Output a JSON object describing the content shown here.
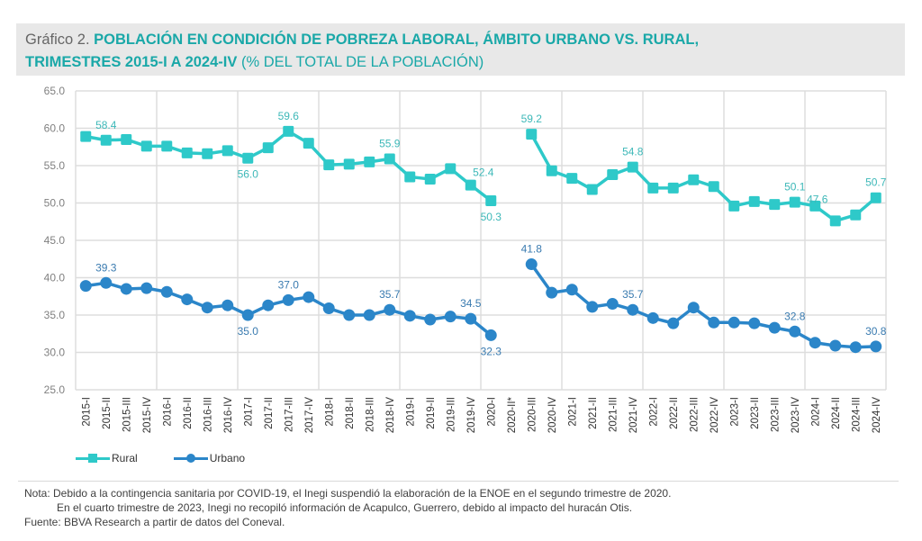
{
  "title": {
    "prefix": "Gráfico 2.",
    "bold_line1": "POBLACIÓN EN CONDICIÓN DE POBREZA LABORAL, ÁMBITO URBANO VS. RURAL,",
    "bold_line2": "TRIMESTRES 2015-I A 2024-IV",
    "normal_line2": "(% DEL TOTAL DE LA POBLACIÓN)"
  },
  "colors": {
    "rural": "#2ec9c9",
    "urbano": "#2b86c9",
    "title_accent": "#1aa8a8",
    "grid": "#dddddd",
    "axis_text": "#808080"
  },
  "chart_data": {
    "type": "line",
    "title": "Población en condición de pobreza laboral, ámbito urbano vs. rural, trimestres 2015-I a 2024-IV (% del total de la población)",
    "xlabel": "",
    "ylabel": "",
    "ylim": [
      25,
      65
    ],
    "yticks": [
      "65.0",
      "60.0",
      "55.0",
      "50.0",
      "45.0",
      "40.0",
      "35.0",
      "30.0",
      "25.0"
    ],
    "ytick_values": [
      65,
      60,
      55,
      50,
      45,
      40,
      35,
      30,
      25
    ],
    "grid": true,
    "legend_position": "bottom-left",
    "categories": [
      "2015-I",
      "2015-II",
      "2015-III",
      "2015-IV",
      "2016-I",
      "2016-II",
      "2016-III",
      "2016-IV",
      "2017-I",
      "2017-II",
      "2017-III",
      "2017-IV",
      "2018-I",
      "2018-II",
      "2018-III",
      "2018-IV",
      "2019-I",
      "2019-II",
      "2019-III",
      "2019-IV",
      "2020-I",
      "2020-II*",
      "2020-III",
      "2020-IV",
      "2021-I",
      "2021-II",
      "2021-III",
      "2021-IV",
      "2022-I",
      "2022-II",
      "2022-III",
      "2022-IV",
      "2023-I",
      "2023-II",
      "2023-III",
      "2023-IV",
      "2024-I",
      "2024-II",
      "2024-III",
      "2024-IV"
    ],
    "series": [
      {
        "name": "Rural",
        "marker": "square",
        "values": [
          58.9,
          58.4,
          58.5,
          57.6,
          57.6,
          56.7,
          56.6,
          57.0,
          56.0,
          57.4,
          59.6,
          58.0,
          55.1,
          55.2,
          55.5,
          55.9,
          53.5,
          53.2,
          54.6,
          52.4,
          50.3,
          null,
          59.2,
          54.3,
          53.3,
          51.8,
          53.8,
          54.8,
          52.0,
          52.0,
          53.1,
          52.2,
          49.6,
          50.2,
          49.8,
          50.1,
          49.6,
          47.6,
          48.4,
          50.7
        ],
        "labels": [
          {
            "index": 1,
            "text": "58.4",
            "pos": "above"
          },
          {
            "index": 8,
            "text": "56.0",
            "pos": "below"
          },
          {
            "index": 10,
            "text": "59.6",
            "pos": "above"
          },
          {
            "index": 15,
            "text": "55.9",
            "pos": "above"
          },
          {
            "index": 19,
            "text": "52.4",
            "pos": "above-right"
          },
          {
            "index": 20,
            "text": "50.3",
            "pos": "below"
          },
          {
            "index": 22,
            "text": "59.2",
            "pos": "above"
          },
          {
            "index": 27,
            "text": "54.8",
            "pos": "above"
          },
          {
            "index": 35,
            "text": "50.1",
            "pos": "above"
          },
          {
            "index": 37,
            "text": "47.6",
            "pos": "above-left"
          },
          {
            "index": 39,
            "text": "50.7",
            "pos": "above"
          }
        ]
      },
      {
        "name": "Urbano",
        "marker": "circle",
        "values": [
          38.9,
          39.3,
          38.5,
          38.6,
          38.1,
          37.1,
          36.0,
          36.3,
          35.0,
          36.3,
          37.0,
          37.4,
          35.9,
          35.0,
          35.0,
          35.7,
          34.9,
          34.4,
          34.8,
          34.5,
          32.3,
          null,
          41.8,
          38.0,
          38.4,
          36.1,
          36.5,
          35.7,
          34.6,
          33.9,
          36.0,
          34.0,
          34.0,
          33.9,
          33.3,
          32.8,
          31.3,
          30.9,
          30.7,
          30.8
        ],
        "labels": [
          {
            "index": 1,
            "text": "39.3",
            "pos": "above"
          },
          {
            "index": 8,
            "text": "35.0",
            "pos": "below"
          },
          {
            "index": 10,
            "text": "37.0",
            "pos": "above"
          },
          {
            "index": 15,
            "text": "35.7",
            "pos": "above"
          },
          {
            "index": 19,
            "text": "34.5",
            "pos": "above"
          },
          {
            "index": 20,
            "text": "32.3",
            "pos": "below"
          },
          {
            "index": 22,
            "text": "41.8",
            "pos": "above"
          },
          {
            "index": 27,
            "text": "35.7",
            "pos": "above"
          },
          {
            "index": 35,
            "text": "32.8",
            "pos": "above"
          },
          {
            "index": 39,
            "text": "30.8",
            "pos": "above"
          }
        ]
      }
    ]
  },
  "legend": {
    "rural_label": "Rural",
    "urbano_label": "Urbano"
  },
  "notes": {
    "line1": "Nota: Debido a la contingencia sanitaria por COVID-19, el Inegi suspendió la elaboración de la ENOE en el segundo trimestre de 2020.",
    "line2": "En el cuarto trimestre de 2023, Inegi no recopiló información de Acapulco, Guerrero, debido al impacto del huracán Otis.",
    "source": "Fuente: BBVA Research a partir de datos del Coneval."
  }
}
